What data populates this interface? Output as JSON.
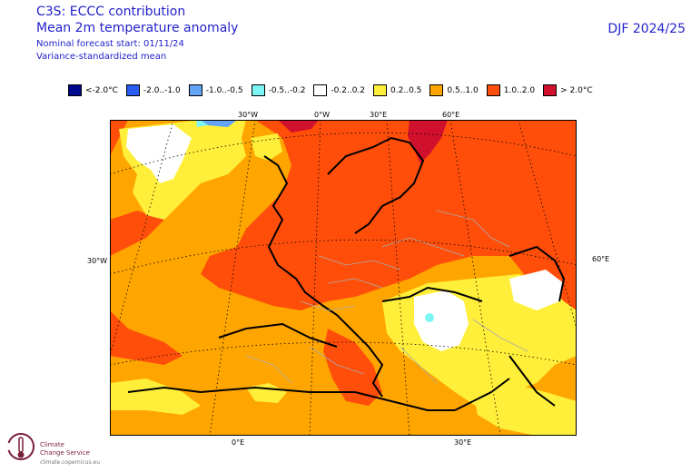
{
  "header": {
    "line1": "C3S: ECCC contribution",
    "line2": "Mean 2m temperature anomaly",
    "line3": "Nominal forecast start: 01/11/24",
    "line4": "Variance-standardized mean",
    "season": "DJF 2024/25"
  },
  "legend": [
    {
      "label": "<-2.0°C",
      "color": "#000a8c"
    },
    {
      "label": "-2.0..-1.0",
      "color": "#2a5cf0"
    },
    {
      "label": "-1.0..-0.5",
      "color": "#63a4f5"
    },
    {
      "label": "-0.5..-0.2",
      "color": "#7ef5f5"
    },
    {
      "label": "-0.2..0.2",
      "color": "#ffffff"
    },
    {
      "label": "0.2..0.5",
      "color": "#ffef3a"
    },
    {
      "label": "0.5..1.0",
      "color": "#ffa500"
    },
    {
      "label": "1.0..2.0",
      "color": "#ff4e0a"
    },
    {
      "label": "> 2.0°C",
      "color": "#d0102c"
    }
  ],
  "axes": {
    "top": [
      "30°W",
      "0°W",
      "30°E",
      "60°E"
    ],
    "left": "30°W",
    "right": "60°E",
    "bottom": [
      "0°E",
      "30°E"
    ]
  },
  "logo": {
    "name_line1": "Climate",
    "name_line2": "Change Service",
    "url": "climate.copernicus.eu",
    "icon": "climate-change-service-logo"
  }
}
